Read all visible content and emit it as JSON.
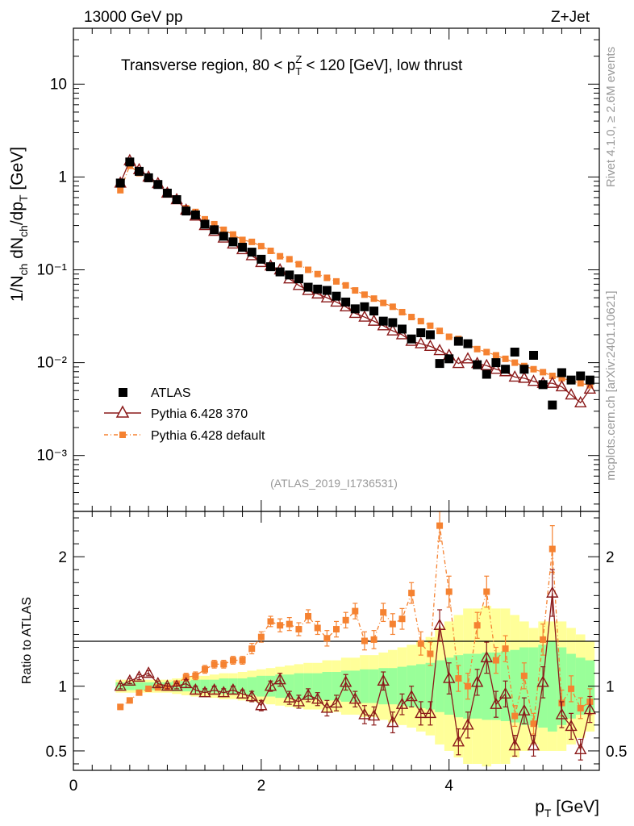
{
  "header": {
    "energy_label": "13000 GeV pp",
    "process_label": "Z+Jet",
    "plot_title_prefix": "Transverse region, 80 < p",
    "plot_title_sup": "Z",
    "plot_title_sub": "T",
    "plot_title_suffix": " < 120 [GeV], low thrust",
    "analysis_id": "(ATLAS_2019_I1736531)",
    "rivet_label": "Rivet 4.1.0, ≥ 2.6M events",
    "mcplots_label": "mcplots.cern.ch [arXiv:2401.10621]"
  },
  "colors": {
    "data": "#000000",
    "pythia370": "#8b1a1a",
    "pythia_default": "#f58231",
    "band_inner": "#99ff99",
    "band_outer": "#ffff99"
  },
  "legend": {
    "data_label": "ATLAS",
    "mc1_label": "Pythia 6.428 370",
    "mc2_label": "Pythia 6.428 default"
  },
  "chart_data": [
    {
      "type": "scatter",
      "panel": "main",
      "ylabel": "1/N_ch dN_ch/dp_T [GeV]",
      "yscale": "log",
      "ylim": [
        0.00025,
        40
      ],
      "xlim": [
        0,
        5.6
      ],
      "y_ticks": [
        {
          "value": 10,
          "label": "10"
        },
        {
          "value": 1,
          "label": "1"
        },
        {
          "value": 0.1,
          "label": "10⁻¹"
        },
        {
          "value": 0.01,
          "label": "10⁻²"
        },
        {
          "value": 0.001,
          "label": "10⁻³"
        }
      ],
      "x": [
        0.5,
        0.6,
        0.7,
        0.8,
        0.9,
        1.0,
        1.1,
        1.2,
        1.3,
        1.4,
        1.5,
        1.6,
        1.7,
        1.8,
        1.9,
        2.0,
        2.1,
        2.2,
        2.3,
        2.4,
        2.5,
        2.6,
        2.7,
        2.8,
        2.9,
        3.0,
        3.1,
        3.2,
        3.3,
        3.4,
        3.5,
        3.6,
        3.7,
        3.8,
        3.9,
        4.0,
        4.1,
        4.2,
        4.3,
        4.4,
        4.5,
        4.6,
        4.7,
        4.8,
        4.9,
        5.0,
        5.1,
        5.2,
        5.3,
        5.4,
        5.5
      ],
      "series": [
        {
          "name": "ATLAS",
          "values": [
            0.86,
            1.45,
            1.15,
            0.98,
            0.83,
            0.67,
            0.57,
            0.43,
            0.39,
            0.31,
            0.27,
            0.23,
            0.2,
            0.175,
            0.155,
            0.13,
            0.108,
            0.095,
            0.088,
            0.08,
            0.065,
            0.062,
            0.06,
            0.052,
            0.045,
            0.038,
            0.04,
            0.036,
            0.028,
            0.027,
            0.023,
            0.018,
            0.021,
            0.02,
            0.0098,
            0.011,
            0.017,
            0.016,
            0.0095,
            0.0075,
            0.01,
            0.0085,
            0.013,
            0.0085,
            0.012,
            0.0058,
            0.0035,
            0.0078,
            0.0065,
            0.0072,
            0.0065
          ]
        },
        {
          "name": "Pythia 6.428 370",
          "values": [
            0.86,
            1.5,
            1.2,
            1.0,
            0.85,
            0.67,
            0.57,
            0.44,
            0.38,
            0.3,
            0.26,
            0.22,
            0.19,
            0.165,
            0.142,
            0.12,
            0.11,
            0.1,
            0.08,
            0.068,
            0.06,
            0.055,
            0.05,
            0.045,
            0.04,
            0.034,
            0.031,
            0.028,
            0.025,
            0.022,
            0.02,
            0.017,
            0.016,
            0.015,
            0.0135,
            0.012,
            0.0098,
            0.011,
            0.0098,
            0.0093,
            0.0085,
            0.008,
            0.007,
            0.0068,
            0.0063,
            0.006,
            0.006,
            0.0055,
            0.0045,
            0.0037,
            0.0052
          ]
        },
        {
          "name": "Pythia 6.428 default",
          "values": [
            0.72,
            1.32,
            1.1,
            0.95,
            0.82,
            0.67,
            0.58,
            0.46,
            0.42,
            0.35,
            0.31,
            0.27,
            0.24,
            0.21,
            0.2,
            0.18,
            0.16,
            0.14,
            0.13,
            0.115,
            0.1,
            0.09,
            0.082,
            0.075,
            0.068,
            0.06,
            0.054,
            0.049,
            0.044,
            0.04,
            0.035,
            0.031,
            0.028,
            0.025,
            0.022,
            0.019,
            0.018,
            0.016,
            0.014,
            0.013,
            0.012,
            0.011,
            0.01,
            0.0092,
            0.0085,
            0.0079,
            0.0072,
            0.0068,
            0.0064,
            0.006,
            0.0057
          ]
        }
      ]
    },
    {
      "type": "scatter",
      "panel": "ratio",
      "ylabel": "Ratio to ATLAS",
      "xlabel": "p_T [GeV]",
      "ylim": [
        0.35,
        2.35
      ],
      "xlim": [
        0,
        5.6
      ],
      "y_ticks": [
        0.5,
        1,
        2
      ],
      "x_ticks": [
        0,
        2,
        4
      ],
      "x": [
        0.5,
        0.6,
        0.7,
        0.8,
        0.9,
        1.0,
        1.1,
        1.2,
        1.3,
        1.4,
        1.5,
        1.6,
        1.7,
        1.8,
        1.9,
        2.0,
        2.1,
        2.2,
        2.3,
        2.4,
        2.5,
        2.6,
        2.7,
        2.8,
        2.9,
        3.0,
        3.1,
        3.2,
        3.3,
        3.4,
        3.5,
        3.6,
        3.7,
        3.8,
        3.9,
        4.0,
        4.1,
        4.2,
        4.3,
        4.4,
        4.5,
        4.6,
        4.7,
        4.8,
        4.9,
        5.0,
        5.1,
        5.2,
        5.3,
        5.4,
        5.5
      ],
      "band_inner": [
        0.03,
        0.03,
        0.03,
        0.03,
        0.03,
        0.03,
        0.04,
        0.04,
        0.05,
        0.05,
        0.05,
        0.06,
        0.06,
        0.06,
        0.07,
        0.08,
        0.08,
        0.09,
        0.09,
        0.1,
        0.1,
        0.1,
        0.11,
        0.11,
        0.12,
        0.12,
        0.13,
        0.13,
        0.14,
        0.14,
        0.15,
        0.16,
        0.17,
        0.18,
        0.2,
        0.22,
        0.24,
        0.25,
        0.25,
        0.26,
        0.26,
        0.27,
        0.28,
        0.3,
        0.3,
        0.32,
        0.35,
        0.3,
        0.25,
        0.22,
        0.2
      ],
      "band_outer": [
        0.05,
        0.05,
        0.05,
        0.05,
        0.05,
        0.05,
        0.06,
        0.07,
        0.08,
        0.08,
        0.09,
        0.1,
        0.1,
        0.11,
        0.12,
        0.13,
        0.14,
        0.15,
        0.16,
        0.17,
        0.18,
        0.18,
        0.2,
        0.2,
        0.22,
        0.22,
        0.24,
        0.24,
        0.26,
        0.28,
        0.3,
        0.32,
        0.35,
        0.38,
        0.45,
        0.5,
        0.55,
        0.6,
        0.6,
        0.62,
        0.6,
        0.6,
        0.55,
        0.5,
        0.45,
        0.5,
        0.5,
        0.5,
        0.45,
        0.4,
        0.35
      ],
      "series": [
        {
          "name": "Pythia 6.428 370",
          "values": [
            1.0,
            1.04,
            1.07,
            1.1,
            1.02,
            1.0,
            1.0,
            1.02,
            0.97,
            0.95,
            0.97,
            0.95,
            0.97,
            0.94,
            0.92,
            0.85,
            1.0,
            1.05,
            0.91,
            0.88,
            0.93,
            0.9,
            0.83,
            0.87,
            1.03,
            0.9,
            0.78,
            0.77,
            1.04,
            0.72,
            0.86,
            0.92,
            0.79,
            0.79,
            1.47,
            1.06,
            0.57,
            0.7,
            1.03,
            1.22,
            0.86,
            0.94,
            0.54,
            0.81,
            0.54,
            1.03,
            1.72,
            0.78,
            0.69,
            0.51,
            0.82
          ],
          "errors": [
            0.02,
            0.02,
            0.02,
            0.02,
            0.02,
            0.02,
            0.02,
            0.03,
            0.03,
            0.03,
            0.03,
            0.03,
            0.03,
            0.03,
            0.04,
            0.04,
            0.04,
            0.05,
            0.05,
            0.05,
            0.05,
            0.05,
            0.06,
            0.06,
            0.06,
            0.06,
            0.07,
            0.07,
            0.07,
            0.08,
            0.08,
            0.08,
            0.09,
            0.09,
            0.12,
            0.12,
            0.1,
            0.1,
            0.1,
            0.12,
            0.1,
            0.1,
            0.08,
            0.1,
            0.08,
            0.12,
            0.18,
            0.1,
            0.1,
            0.08,
            0.1
          ]
        },
        {
          "name": "Pythia 6.428 default",
          "values": [
            0.84,
            0.89,
            0.95,
            0.98,
            0.99,
            0.99,
            1.02,
            1.07,
            1.08,
            1.13,
            1.17,
            1.17,
            1.2,
            1.2,
            1.29,
            1.38,
            1.5,
            1.47,
            1.48,
            1.44,
            1.54,
            1.45,
            1.37,
            1.44,
            1.51,
            1.58,
            1.35,
            1.36,
            1.57,
            1.48,
            1.52,
            1.72,
            1.33,
            1.25,
            2.24,
            1.73,
            1.06,
            1.0,
            1.47,
            1.73,
            1.2,
            1.29,
            0.77,
            1.08,
            0.71,
            1.36,
            2.06,
            0.87,
            0.98,
            0.83,
            0.88
          ],
          "errors": [
            0.02,
            0.02,
            0.02,
            0.02,
            0.02,
            0.02,
            0.02,
            0.03,
            0.03,
            0.03,
            0.03,
            0.03,
            0.03,
            0.03,
            0.04,
            0.04,
            0.04,
            0.05,
            0.05,
            0.05,
            0.05,
            0.05,
            0.06,
            0.06,
            0.06,
            0.06,
            0.07,
            0.07,
            0.07,
            0.08,
            0.08,
            0.08,
            0.09,
            0.09,
            0.12,
            0.12,
            0.1,
            0.1,
            0.1,
            0.12,
            0.1,
            0.1,
            0.08,
            0.1,
            0.08,
            0.12,
            0.18,
            0.1,
            0.1,
            0.08,
            0.1
          ]
        }
      ]
    }
  ]
}
